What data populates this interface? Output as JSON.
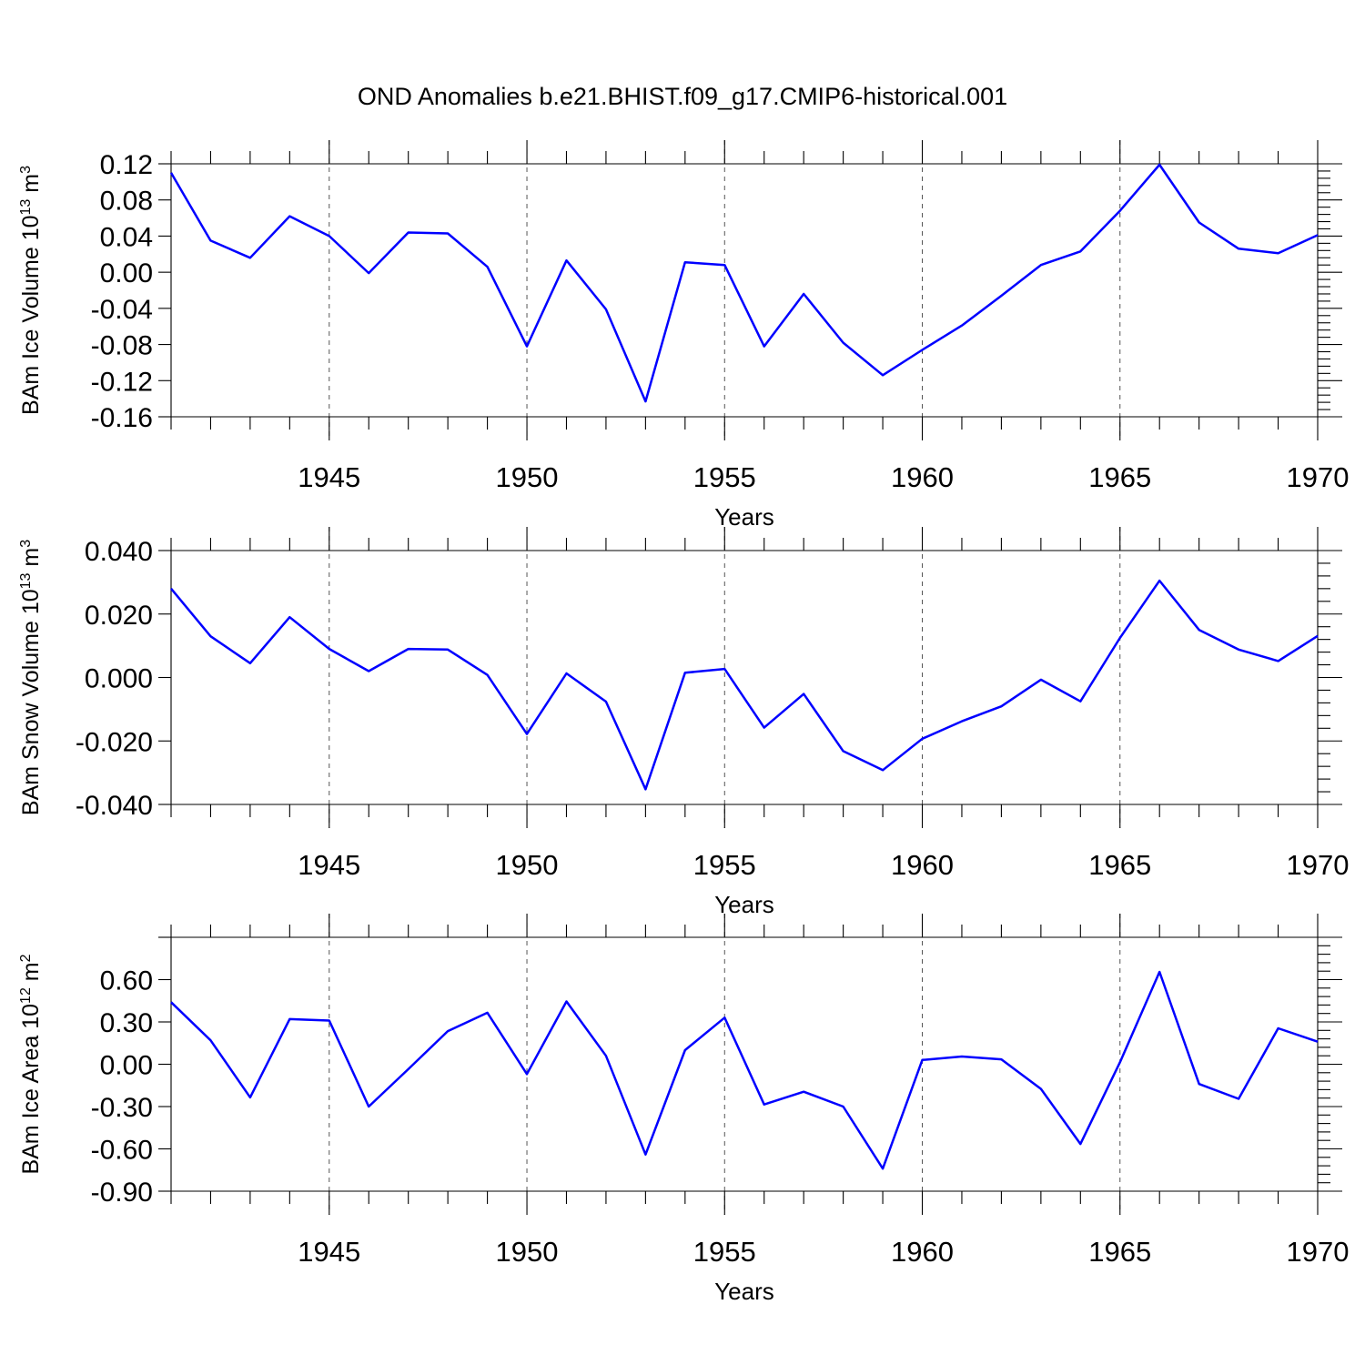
{
  "figure": {
    "title": "OND Anomalies b.e21.BHIST.f09_g17.CMIP6-historical.001"
  },
  "colors": {
    "series": "#0000ff",
    "axis": "#000000",
    "grid": "#555555"
  },
  "chart_data": [
    {
      "type": "line",
      "title": "",
      "xlabel": "Years",
      "ylabel": "BAm Ice Volume 10",
      "ylabel_sup": "13",
      "ylabel_unit": "m",
      "ylabel_unit_sup": "3",
      "xlim": [
        1941,
        1970
      ],
      "ylim": [
        -0.16,
        0.12
      ],
      "xticks": [
        1945,
        1950,
        1955,
        1960,
        1965,
        1970
      ],
      "yticks": [
        -0.16,
        -0.12,
        -0.08,
        -0.04,
        0.0,
        0.04,
        0.08,
        0.12
      ],
      "ytick_labels": [
        "-0.16",
        "-0.12",
        "-0.08",
        "-0.04",
        "0.00",
        "0.04",
        "0.08",
        "0.12"
      ],
      "grid": "vertical dashed at major x ticks",
      "x": [
        1941,
        1942,
        1943,
        1944,
        1945,
        1946,
        1947,
        1948,
        1949,
        1950,
        1951,
        1952,
        1953,
        1954,
        1955,
        1956,
        1957,
        1958,
        1959,
        1960,
        1961,
        1962,
        1963,
        1964,
        1965,
        1966,
        1967,
        1968,
        1969,
        1970
      ],
      "series": [
        {
          "name": "BAm Ice Volume",
          "values": [
            0.11,
            0.035,
            0.016,
            0.062,
            0.04,
            -0.001,
            0.044,
            0.043,
            0.006,
            -0.082,
            0.013,
            -0.041,
            -0.143,
            0.011,
            0.008,
            -0.082,
            -0.024,
            -0.078,
            -0.114,
            -0.086,
            -0.059,
            -0.026,
            0.008,
            0.023,
            0.068,
            0.119,
            0.055,
            0.026,
            0.021,
            0.041
          ]
        }
      ]
    },
    {
      "type": "line",
      "title": "",
      "xlabel": "Years",
      "ylabel": "BAm Snow Volume 10",
      "ylabel_sup": "13",
      "ylabel_unit": "m",
      "ylabel_unit_sup": "3",
      "xlim": [
        1941,
        1970
      ],
      "ylim": [
        -0.04,
        0.04
      ],
      "xticks": [
        1945,
        1950,
        1955,
        1960,
        1965,
        1970
      ],
      "yticks": [
        -0.04,
        -0.02,
        0.0,
        0.02,
        0.04
      ],
      "ytick_labels": [
        "-0.040",
        "-0.020",
        "0.000",
        "0.020",
        "0.040"
      ],
      "grid": "vertical dashed at major x ticks",
      "x": [
        1941,
        1942,
        1943,
        1944,
        1945,
        1946,
        1947,
        1948,
        1949,
        1950,
        1951,
        1952,
        1953,
        1954,
        1955,
        1956,
        1957,
        1958,
        1959,
        1960,
        1961,
        1962,
        1963,
        1964,
        1965,
        1966,
        1967,
        1968,
        1969,
        1970
      ],
      "series": [
        {
          "name": "BAm Snow Volume",
          "values": [
            0.028,
            0.013,
            0.0045,
            0.019,
            0.009,
            0.002,
            0.009,
            0.0088,
            0.0008,
            -0.0178,
            0.0013,
            -0.0076,
            -0.0352,
            0.0015,
            0.0027,
            -0.0158,
            -0.0052,
            -0.0232,
            -0.0292,
            -0.0193,
            -0.0138,
            -0.0091,
            -0.0007,
            -0.0075,
            0.0125,
            0.0305,
            0.015,
            0.0088,
            0.0052,
            0.0131
          ]
        }
      ]
    },
    {
      "type": "line",
      "title": "",
      "xlabel": "Years",
      "ylabel": "BAm Ice Area 10",
      "ylabel_sup": "12",
      "ylabel_unit": "m",
      "ylabel_unit_sup": "2",
      "xlim": [
        1941,
        1970
      ],
      "ylim": [
        -0.9,
        0.9
      ],
      "xticks": [
        1945,
        1950,
        1955,
        1960,
        1965,
        1970
      ],
      "yticks": [
        -0.9,
        -0.6,
        -0.3,
        0.0,
        0.3,
        0.6
      ],
      "ytick_labels": [
        "-0.90",
        "-0.60",
        "-0.30",
        "0.00",
        "0.30",
        "0.60"
      ],
      "grid": "vertical dashed at major x ticks",
      "x": [
        1941,
        1942,
        1943,
        1944,
        1945,
        1946,
        1947,
        1948,
        1949,
        1950,
        1951,
        1952,
        1953,
        1954,
        1955,
        1956,
        1957,
        1958,
        1959,
        1960,
        1961,
        1962,
        1963,
        1964,
        1965,
        1966,
        1967,
        1968,
        1969,
        1970
      ],
      "series": [
        {
          "name": "BAm Ice Area",
          "values": [
            0.44,
            0.17,
            -0.235,
            0.32,
            0.31,
            -0.3,
            -0.035,
            0.235,
            0.365,
            -0.07,
            0.445,
            0.06,
            -0.64,
            0.1,
            0.33,
            -0.285,
            -0.195,
            -0.3,
            -0.74,
            0.03,
            0.055,
            0.035,
            -0.175,
            -0.565,
            0.015,
            0.655,
            -0.14,
            -0.245,
            0.255,
            0.16
          ]
        }
      ]
    }
  ]
}
